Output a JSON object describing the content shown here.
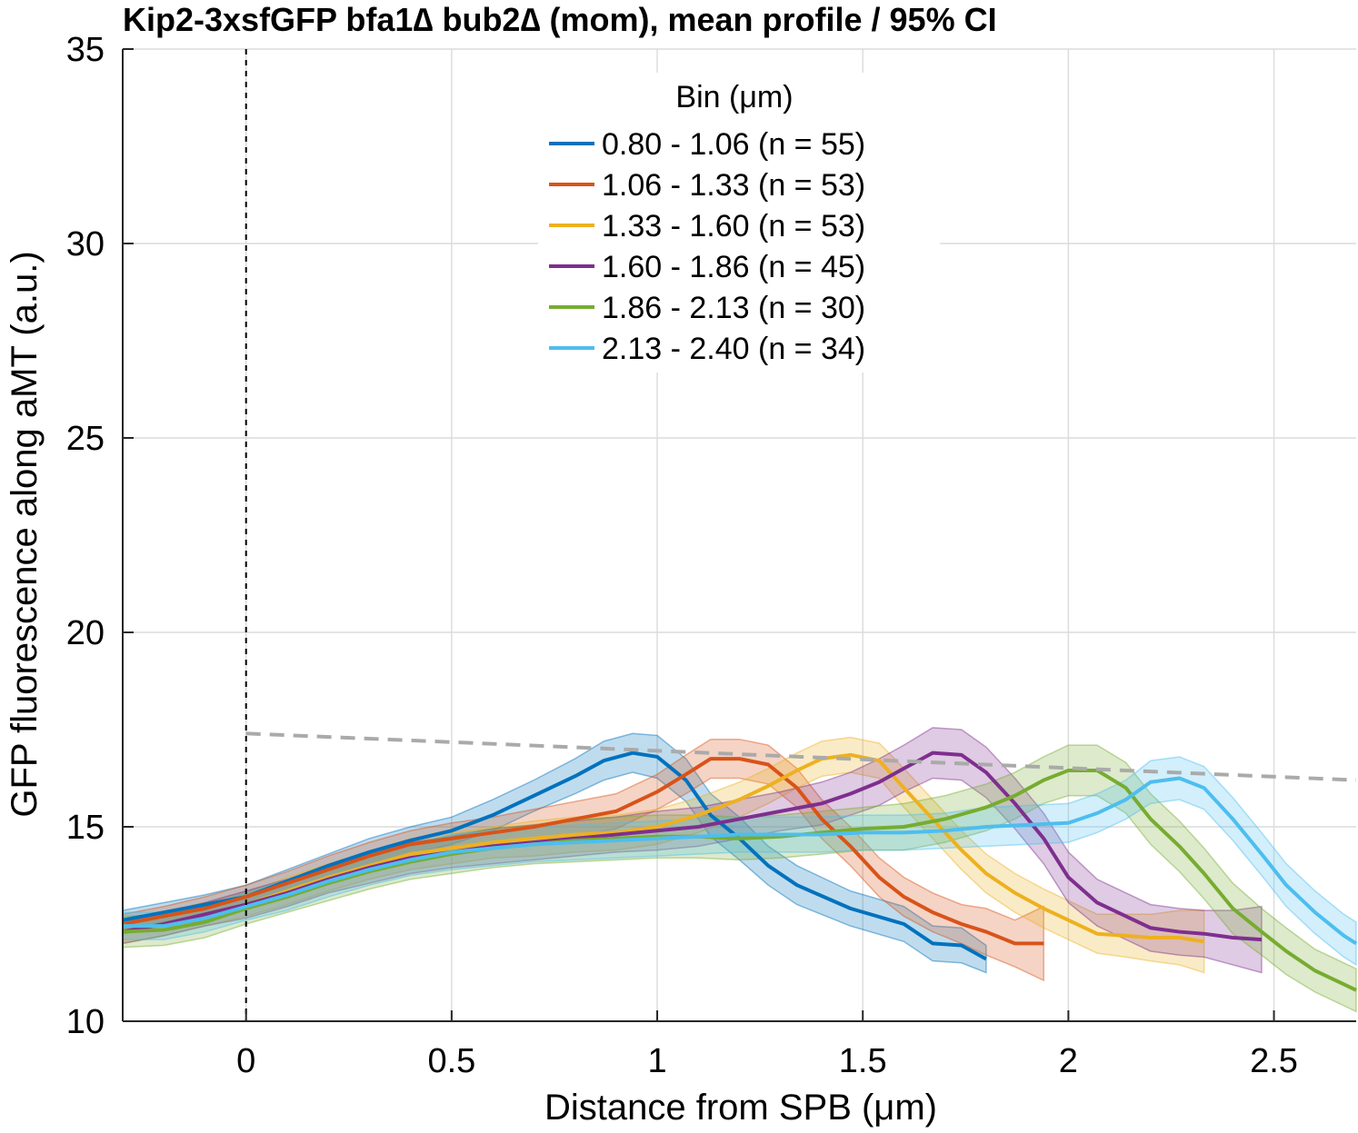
{
  "chart_data": {
    "type": "line",
    "title": "Kip2-3xsfGFP bfa1∆ bub2∆ (mom), mean profile / 95% CI",
    "xlabel": "Distance from SPB (μm)",
    "ylabel": "GFP fluorescence along aMT (a.u.)",
    "xlim": [
      -0.3,
      2.7
    ],
    "ylim": [
      10,
      35
    ],
    "xticks": [
      0,
      0.5,
      1,
      1.5,
      2,
      2.5
    ],
    "xtick_labels": [
      "0",
      "0.5",
      "1",
      "1.5",
      "2",
      "2.5"
    ],
    "yticks": [
      10,
      15,
      20,
      25,
      30,
      35
    ],
    "ytick_labels": [
      "10",
      "15",
      "20",
      "25",
      "30",
      "35"
    ],
    "grid": true,
    "legend": {
      "title": "Bin (μm)",
      "placement": "top-center"
    },
    "reference_lines": [
      {
        "kind": "vertical",
        "style": "dashed",
        "color": "#000000",
        "x": 0
      },
      {
        "kind": "line",
        "style": "dashed",
        "color": "#aaaaaa",
        "x": [
          0,
          2.7
        ],
        "y": [
          17.4,
          16.2
        ]
      }
    ],
    "series": [
      {
        "name": "0.80 - 1.06 (n = 55)",
        "color": "#0072BD",
        "x": [
          -0.3,
          -0.2,
          -0.1,
          0,
          0.1,
          0.2,
          0.3,
          0.4,
          0.5,
          0.6,
          0.7,
          0.8,
          0.87,
          0.94,
          1.0,
          1.07,
          1.13,
          1.2,
          1.27,
          1.34,
          1.47,
          1.6,
          1.67,
          1.74,
          1.8
        ],
        "y": [
          12.6,
          12.8,
          13.0,
          13.2,
          13.6,
          14.0,
          14.35,
          14.65,
          14.9,
          15.3,
          15.8,
          16.3,
          16.7,
          16.9,
          16.8,
          16.2,
          15.3,
          14.7,
          14.0,
          13.5,
          12.9,
          12.5,
          12.0,
          11.95,
          11.6
        ],
        "ci": [
          0.25,
          0.25,
          0.25,
          0.3,
          0.3,
          0.3,
          0.35,
          0.35,
          0.35,
          0.4,
          0.4,
          0.45,
          0.5,
          0.5,
          0.55,
          0.55,
          0.55,
          0.55,
          0.5,
          0.5,
          0.45,
          0.45,
          0.45,
          0.45,
          0.35
        ]
      },
      {
        "name": "1.06 - 1.33 (n = 53)",
        "color": "#D95319",
        "x": [
          -0.3,
          -0.2,
          -0.1,
          0,
          0.1,
          0.2,
          0.3,
          0.4,
          0.5,
          0.6,
          0.7,
          0.8,
          0.9,
          1.0,
          1.07,
          1.13,
          1.2,
          1.27,
          1.34,
          1.4,
          1.47,
          1.54,
          1.6,
          1.67,
          1.74,
          1.8,
          1.87,
          1.94
        ],
        "y": [
          12.5,
          12.7,
          12.9,
          13.2,
          13.55,
          13.9,
          14.25,
          14.55,
          14.7,
          14.85,
          15.0,
          15.2,
          15.4,
          15.9,
          16.35,
          16.75,
          16.75,
          16.6,
          16.0,
          15.2,
          14.5,
          13.7,
          13.2,
          12.8,
          12.5,
          12.3,
          12.0,
          12.0
        ],
        "ci": [
          0.25,
          0.25,
          0.3,
          0.3,
          0.3,
          0.35,
          0.35,
          0.35,
          0.4,
          0.4,
          0.45,
          0.45,
          0.45,
          0.45,
          0.5,
          0.5,
          0.5,
          0.5,
          0.5,
          0.5,
          0.5,
          0.5,
          0.5,
          0.5,
          0.5,
          0.6,
          0.6,
          0.95
        ]
      },
      {
        "name": "1.33 - 1.60 (n = 53)",
        "color": "#EDB120",
        "x": [
          -0.3,
          -0.2,
          -0.1,
          0,
          0.1,
          0.2,
          0.3,
          0.4,
          0.5,
          0.6,
          0.7,
          0.8,
          0.9,
          1.0,
          1.1,
          1.2,
          1.27,
          1.34,
          1.4,
          1.47,
          1.54,
          1.6,
          1.67,
          1.74,
          1.8,
          1.87,
          1.94,
          2.0,
          2.07,
          2.14,
          2.2,
          2.27,
          2.33
        ],
        "y": [
          12.3,
          12.5,
          12.75,
          13.0,
          13.35,
          13.7,
          14.0,
          14.3,
          14.45,
          14.6,
          14.7,
          14.8,
          14.85,
          15.0,
          15.3,
          15.7,
          16.05,
          16.45,
          16.75,
          16.85,
          16.7,
          16.0,
          15.2,
          14.4,
          13.8,
          13.3,
          12.9,
          12.6,
          12.25,
          12.2,
          12.15,
          12.15,
          12.05
        ],
        "ci": [
          0.3,
          0.3,
          0.3,
          0.3,
          0.35,
          0.35,
          0.35,
          0.4,
          0.4,
          0.4,
          0.45,
          0.45,
          0.45,
          0.45,
          0.45,
          0.45,
          0.45,
          0.45,
          0.45,
          0.45,
          0.45,
          0.5,
          0.5,
          0.5,
          0.5,
          0.5,
          0.5,
          0.5,
          0.5,
          0.55,
          0.6,
          0.7,
          0.8
        ]
      },
      {
        "name": "1.60 - 1.86 (n = 45)",
        "color": "#7E2F8E",
        "x": [
          -0.3,
          -0.2,
          -0.1,
          0,
          0.1,
          0.2,
          0.3,
          0.4,
          0.5,
          0.6,
          0.7,
          0.8,
          0.9,
          1.0,
          1.1,
          1.2,
          1.3,
          1.4,
          1.47,
          1.54,
          1.6,
          1.67,
          1.74,
          1.8,
          1.87,
          1.94,
          2.0,
          2.07,
          2.14,
          2.2,
          2.27,
          2.33,
          2.4,
          2.47
        ],
        "y": [
          12.3,
          12.5,
          12.75,
          13.0,
          13.3,
          13.65,
          13.95,
          14.2,
          14.35,
          14.5,
          14.6,
          14.7,
          14.8,
          14.9,
          15.0,
          15.2,
          15.4,
          15.6,
          15.85,
          16.15,
          16.5,
          16.9,
          16.85,
          16.4,
          15.6,
          14.7,
          13.7,
          13.05,
          12.7,
          12.4,
          12.3,
          12.25,
          12.15,
          12.1
        ],
        "ci": [
          0.3,
          0.3,
          0.3,
          0.35,
          0.35,
          0.35,
          0.4,
          0.4,
          0.4,
          0.45,
          0.45,
          0.45,
          0.45,
          0.5,
          0.5,
          0.5,
          0.5,
          0.55,
          0.55,
          0.6,
          0.6,
          0.65,
          0.65,
          0.65,
          0.65,
          0.65,
          0.65,
          0.6,
          0.6,
          0.6,
          0.6,
          0.6,
          0.7,
          0.85
        ]
      },
      {
        "name": "1.86 - 2.13 (n = 30)",
        "color": "#77AC30",
        "x": [
          -0.3,
          -0.2,
          -0.1,
          0,
          0.1,
          0.2,
          0.3,
          0.4,
          0.5,
          0.6,
          0.7,
          0.8,
          0.9,
          1.0,
          1.1,
          1.2,
          1.3,
          1.4,
          1.5,
          1.6,
          1.7,
          1.8,
          1.87,
          1.94,
          2.0,
          2.07,
          2.14,
          2.2,
          2.27,
          2.33,
          2.4,
          2.47,
          2.53,
          2.6,
          2.67,
          2.7
        ],
        "y": [
          12.3,
          12.35,
          12.55,
          12.9,
          13.2,
          13.55,
          13.85,
          14.1,
          14.3,
          14.45,
          14.55,
          14.65,
          14.7,
          14.75,
          14.75,
          14.7,
          14.75,
          14.85,
          14.95,
          15.0,
          15.2,
          15.5,
          15.8,
          16.2,
          16.45,
          16.45,
          16.0,
          15.2,
          14.5,
          13.8,
          12.9,
          12.3,
          11.8,
          11.3,
          10.95,
          10.8
        ],
        "ci": [
          0.4,
          0.4,
          0.4,
          0.4,
          0.4,
          0.45,
          0.45,
          0.45,
          0.5,
          0.5,
          0.5,
          0.55,
          0.55,
          0.55,
          0.55,
          0.55,
          0.55,
          0.55,
          0.55,
          0.6,
          0.6,
          0.6,
          0.6,
          0.6,
          0.65,
          0.65,
          0.65,
          0.65,
          0.65,
          0.65,
          0.65,
          0.6,
          0.6,
          0.55,
          0.55,
          0.55
        ]
      },
      {
        "name": "2.13 - 2.40 (n = 34)",
        "color": "#4DBEEE",
        "x": [
          -0.3,
          -0.2,
          -0.1,
          0,
          0.1,
          0.2,
          0.3,
          0.4,
          0.5,
          0.6,
          0.7,
          0.8,
          0.9,
          1.0,
          1.1,
          1.2,
          1.3,
          1.4,
          1.5,
          1.6,
          1.7,
          1.8,
          1.9,
          2.0,
          2.07,
          2.14,
          2.2,
          2.27,
          2.33,
          2.4,
          2.47,
          2.53,
          2.6,
          2.67,
          2.7
        ],
        "y": [
          12.45,
          12.45,
          12.65,
          12.95,
          13.25,
          13.6,
          13.9,
          14.15,
          14.35,
          14.45,
          14.55,
          14.6,
          14.65,
          14.7,
          14.75,
          14.8,
          14.8,
          14.8,
          14.85,
          14.85,
          14.9,
          15.0,
          15.05,
          15.1,
          15.35,
          15.7,
          16.15,
          16.25,
          16.0,
          15.2,
          14.3,
          13.5,
          12.8,
          12.2,
          12.0
        ],
        "ci": [
          0.35,
          0.35,
          0.35,
          0.35,
          0.4,
          0.4,
          0.4,
          0.4,
          0.45,
          0.45,
          0.45,
          0.45,
          0.45,
          0.45,
          0.45,
          0.45,
          0.45,
          0.45,
          0.45,
          0.45,
          0.45,
          0.5,
          0.5,
          0.5,
          0.5,
          0.5,
          0.55,
          0.55,
          0.55,
          0.55,
          0.55,
          0.55,
          0.55,
          0.55,
          0.55
        ]
      }
    ]
  }
}
